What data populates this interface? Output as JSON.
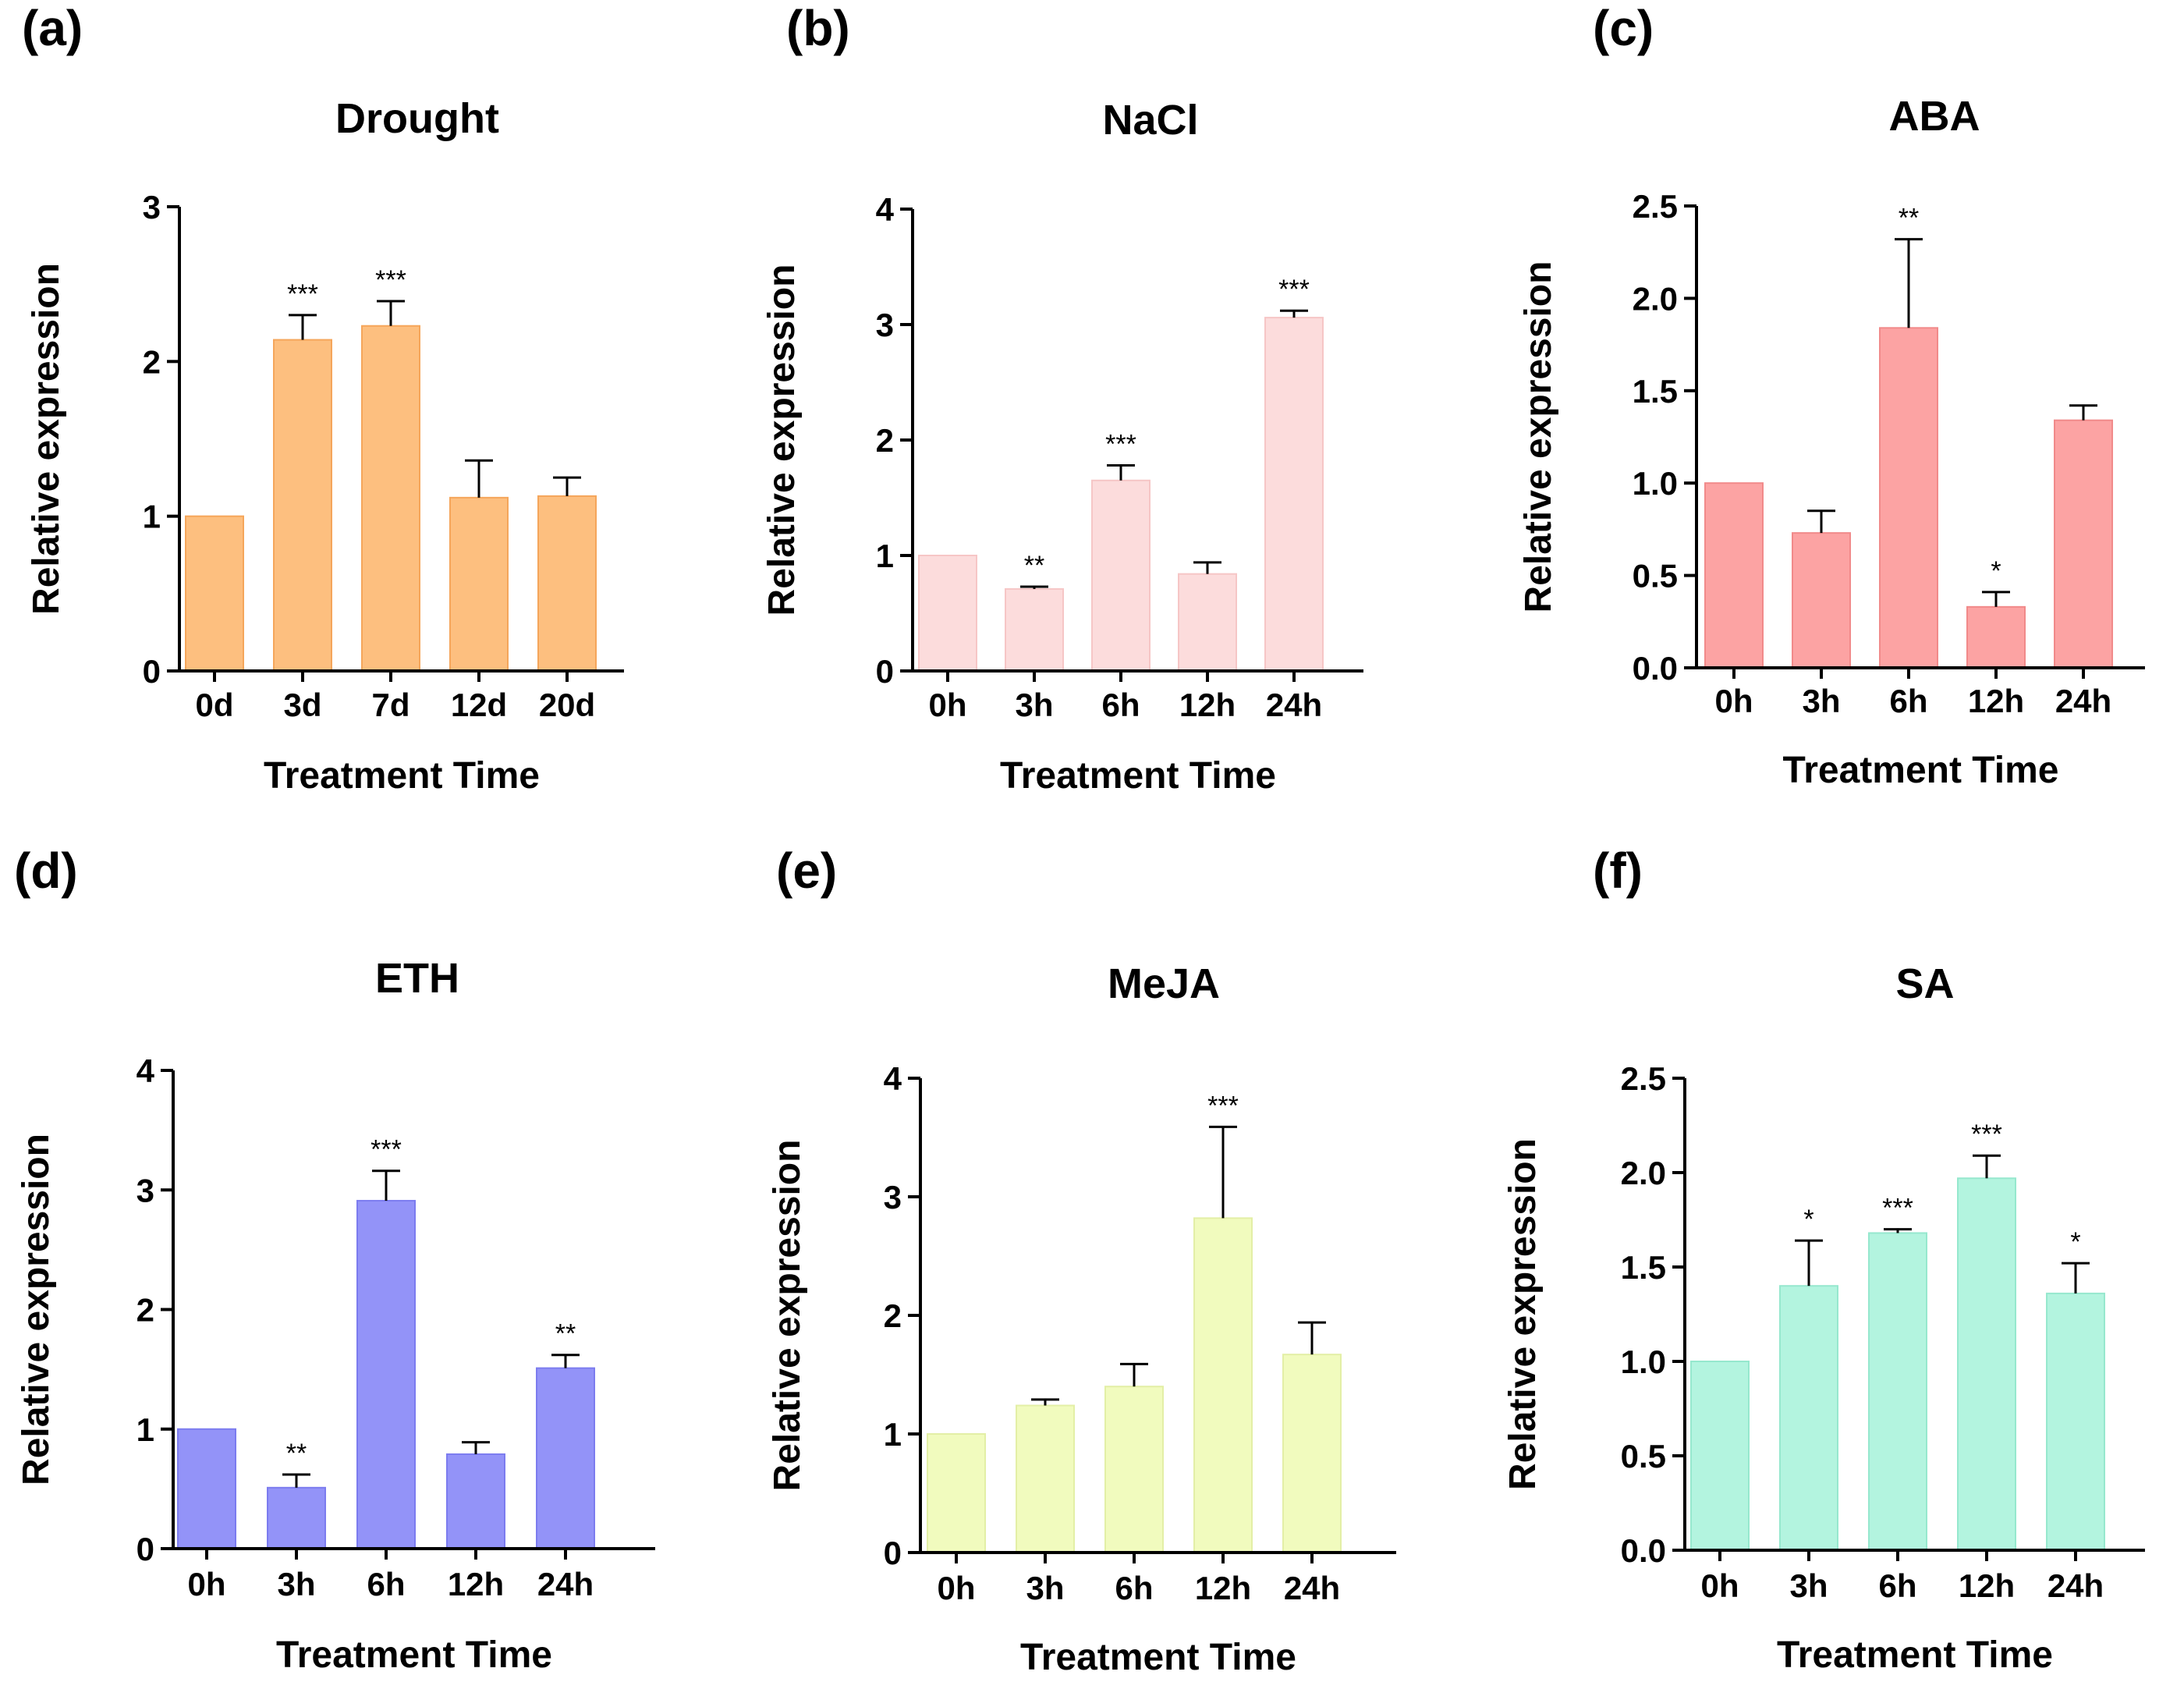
{
  "chart_data": [
    {
      "panel": "(a)",
      "title": "Drought",
      "type": "bar",
      "xlabel": "Treatment Time",
      "ylabel": "Relative expression",
      "categories": [
        "0d",
        "3d",
        "7d",
        "12d",
        "20d"
      ],
      "values": [
        1.0,
        2.14,
        2.23,
        1.12,
        1.13
      ],
      "errors": [
        0,
        0.16,
        0.16,
        0.24,
        0.12
      ],
      "significance": [
        "",
        "***",
        "***",
        "",
        ""
      ],
      "ylim": [
        0,
        3
      ],
      "yticks": [
        "0",
        "1",
        "2",
        "3"
      ],
      "yticks_values": [
        0,
        1,
        2,
        3
      ],
      "color": "#FDBF7F",
      "stroke": "#F5A65B"
    },
    {
      "panel": "(b)",
      "title": "NaCl",
      "type": "bar",
      "xlabel": "Treatment Time",
      "ylabel": "Relative expression",
      "categories": [
        "0h",
        "3h",
        "6h",
        "12h",
        "24h"
      ],
      "values": [
        1.0,
        0.71,
        1.65,
        0.84,
        3.06
      ],
      "errors": [
        0,
        0.02,
        0.13,
        0.1,
        0.06
      ],
      "significance": [
        "",
        "**",
        "***",
        "",
        "***"
      ],
      "ylim": [
        0,
        4
      ],
      "yticks": [
        "0",
        "1",
        "2",
        "3",
        "4"
      ],
      "yticks_values": [
        0,
        1,
        2,
        3,
        4
      ],
      "color": "#FCDCDC",
      "stroke": "#F6C6C6"
    },
    {
      "panel": "(c)",
      "title": "ABA",
      "type": "bar",
      "xlabel": "Treatment Time",
      "ylabel": "Relative expression",
      "categories": [
        "0h",
        "3h",
        "6h",
        "12h",
        "24h"
      ],
      "values": [
        1.0,
        0.73,
        1.84,
        0.33,
        1.34
      ],
      "errors": [
        0,
        0.12,
        0.48,
        0.08,
        0.08
      ],
      "significance": [
        "",
        "",
        "**",
        "*",
        ""
      ],
      "ylim": [
        0,
        2.5
      ],
      "yticks": [
        "0.0",
        "0.5",
        "1.0",
        "1.5",
        "2.0",
        "2.5"
      ],
      "yticks_values": [
        0,
        0.5,
        1.0,
        1.5,
        2.0,
        2.5
      ],
      "color": "#FCA3A3",
      "stroke": "#F18A8A"
    },
    {
      "panel": "(d)",
      "title": "ETH",
      "type": "bar",
      "xlabel": "Treatment Time",
      "ylabel": "Relative expression",
      "categories": [
        "0h",
        "3h",
        "6h",
        "12h",
        "24h"
      ],
      "values": [
        1.0,
        0.51,
        2.91,
        0.79,
        1.51
      ],
      "errors": [
        0,
        0.11,
        0.25,
        0.1,
        0.11
      ],
      "significance": [
        "",
        "**",
        "***",
        "",
        "**"
      ],
      "ylim": [
        0,
        4
      ],
      "yticks": [
        "0",
        "1",
        "2",
        "3",
        "4"
      ],
      "yticks_values": [
        0,
        1,
        2,
        3,
        4
      ],
      "color": "#9393F8",
      "stroke": "#7C7CEF"
    },
    {
      "panel": "(e)",
      "title": "MeJA",
      "type": "bar",
      "xlabel": "Treatment Time",
      "ylabel": "Relative expression",
      "categories": [
        "0h",
        "3h",
        "6h",
        "12h",
        "24h"
      ],
      "values": [
        1.0,
        1.24,
        1.4,
        2.82,
        1.67
      ],
      "errors": [
        0,
        0.05,
        0.19,
        0.77,
        0.27
      ],
      "significance": [
        "",
        "",
        "",
        "***",
        ""
      ],
      "ylim": [
        0,
        4
      ],
      "yticks": [
        "0",
        "1",
        "2",
        "3",
        "4"
      ],
      "yticks_values": [
        0,
        1,
        2,
        3,
        4
      ],
      "color": "#F1FBBE",
      "stroke": "#E3EFA6"
    },
    {
      "panel": "(f)",
      "title": "SA",
      "type": "bar",
      "xlabel": "Treatment Time",
      "ylabel": "Relative expression",
      "categories": [
        "0h",
        "3h",
        "6h",
        "12h",
        "24h"
      ],
      "values": [
        1.0,
        1.4,
        1.68,
        1.97,
        1.36
      ],
      "errors": [
        0,
        0.24,
        0.02,
        0.12,
        0.16
      ],
      "significance": [
        "",
        "*",
        "***",
        "***",
        "*"
      ],
      "ylim": [
        0,
        2.5
      ],
      "yticks": [
        "0.0",
        "0.5",
        "1.0",
        "1.5",
        "2.0",
        "2.5"
      ],
      "yticks_values": [
        0,
        0.5,
        1.0,
        1.5,
        2.0,
        2.5
      ],
      "color": "#B3F4DF",
      "stroke": "#96E8CE"
    }
  ]
}
